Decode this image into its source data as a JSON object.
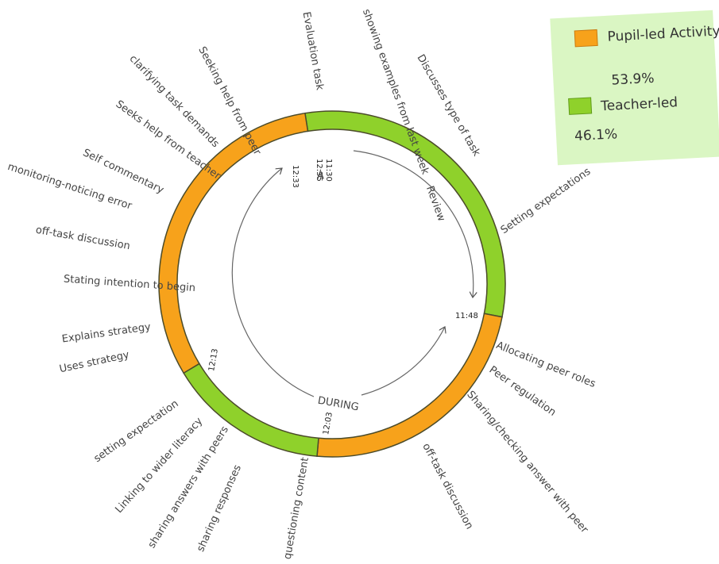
{
  "legend": {
    "items": [
      {
        "label": "Pupil-led Activity",
        "percent": "53.9%"
      },
      {
        "label": "Teacher-led",
        "percent": "46.1%"
      }
    ]
  },
  "times": [
    "12:33",
    "12:35",
    "11:30",
    "11:48",
    "12:13",
    "12:03"
  ],
  "annotations": [
    "A",
    "Review",
    "DURING"
  ],
  "labels": [
    "Evaluation task",
    "showing examples from last week",
    "Discusses type of task",
    "Setting expectations",
    "Allocating peer roles",
    "Peer regulation",
    "Sharing/checking answer with peer",
    "off-task discussion",
    "questioning content",
    "sharing responses",
    "sharing answers with peers",
    "Linking to wider literacy",
    "setting expectation",
    "Uses strategy",
    "Explains strategy",
    "Stating intention to begin",
    "off-task discussion",
    "monitoring-noticing error",
    "Self commentary",
    "Seeks help from teacher",
    "clarifying task demands",
    "Seeking help from peer"
  ]
}
